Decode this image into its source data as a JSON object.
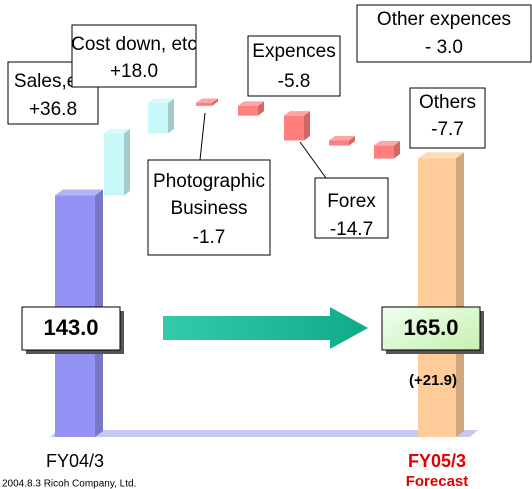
{
  "chart_data": {
    "type": "waterfall",
    "categories": [
      "FY04/3",
      "Sales,etc",
      "Cost down, etc",
      "Photographic Business",
      "Expences",
      "Forex",
      "Other expences",
      "Others",
      "FY05/3"
    ],
    "values": [
      143.0,
      36.8,
      18.0,
      -1.7,
      -5.8,
      -14.7,
      -3.0,
      -7.7,
      165.0
    ],
    "value_labels": [
      "143.0",
      "+36.8",
      "+18.0",
      "-1.7",
      "-5.8",
      "-14.7",
      "- 3.0",
      "-7.7",
      "165.0"
    ],
    "start_color": "#9393f5",
    "increase_color": "#c8f8f8",
    "decrease_color": "#ff7f7f",
    "end_color": "#ffcc99",
    "end_note": "Forecast",
    "annotation": "(+21.9)",
    "footer": "2004.8.3  Ricoh Company, Ltd."
  }
}
